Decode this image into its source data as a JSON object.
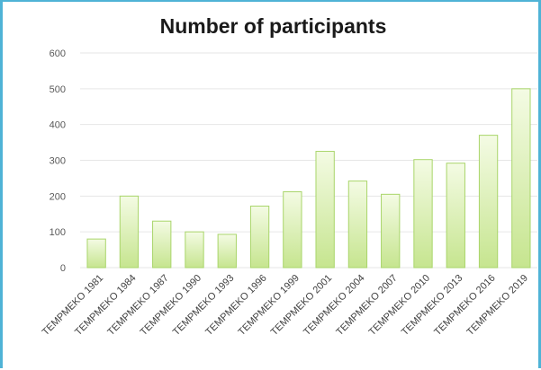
{
  "chart_data": {
    "type": "bar",
    "title": "Number of participants",
    "categories": [
      "TEMPMEKO 1981",
      "TEMPMEKO 1984",
      "TEMPMEKO 1987",
      "TEMPMEKO 1990",
      "TEMPMEKO 1993",
      "TEMPMEKO 1996",
      "TEMPMEKO 1999",
      "TEMPMEKO 2001",
      "TEMPMEKO 2004",
      "TEMPMEKO 2007",
      "TEMPMEKO 2010",
      "TEMPMEKO 2013",
      "TEMPMEKO 2016",
      "TEMPMEKO 2019"
    ],
    "values": [
      80,
      200,
      130,
      100,
      93,
      172,
      212,
      325,
      242,
      205,
      302,
      292,
      370,
      500
    ],
    "ylim": [
      0,
      600
    ],
    "yticks": [
      "0",
      "100",
      "200",
      "300",
      "400",
      "500",
      "600"
    ],
    "grid": true,
    "colors": {
      "bar_fill_top": "#f4fbe4",
      "bar_fill_bottom": "#c6e58f",
      "bar_stroke": "#a9d56a",
      "grid": "#e6e6e6",
      "frame": "#4fb3d6"
    }
  }
}
